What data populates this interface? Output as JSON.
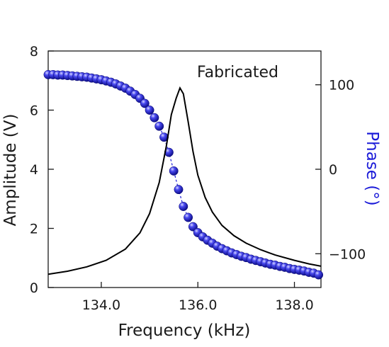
{
  "chart_data": {
    "type": "line",
    "annotation": "Fabricated",
    "xlabel": "Frequency (kHz)",
    "ylabel": "Amplitude (V)",
    "y2label": "Phase (°)",
    "xlim": [
      132.9,
      138.55
    ],
    "ylim": [
      0,
      8
    ],
    "y2lim": [
      -140,
      140
    ],
    "x_ticks": [
      134.0,
      136.0,
      138.0
    ],
    "x_tick_labels": [
      "134.0",
      "136.0",
      "138.0"
    ],
    "y_ticks": [
      0,
      2,
      4,
      6,
      8
    ],
    "y_tick_labels": [
      "0",
      "2",
      "4",
      "6",
      "8"
    ],
    "y2_ticks": [
      100,
      0,
      -100
    ],
    "y2_tick_labels": [
      "100",
      "0",
      "−100"
    ],
    "grid": false,
    "colors": {
      "amplitude": "#000000",
      "phase": "#1a1ad8",
      "axis": "#1a1a1a"
    },
    "series": [
      {
        "axis": "left",
        "style": "line",
        "x": [
          132.9,
          133.3,
          133.7,
          134.1,
          134.5,
          134.8,
          135.0,
          135.2,
          135.35,
          135.45,
          135.55,
          135.63,
          135.7,
          135.8,
          135.9,
          136.0,
          136.15,
          136.3,
          136.5,
          136.75,
          137.0,
          137.3,
          137.6,
          138.0,
          138.3,
          138.55
        ],
        "y": [
          0.45,
          0.55,
          0.7,
          0.92,
          1.3,
          1.85,
          2.5,
          3.55,
          4.8,
          5.85,
          6.4,
          6.75,
          6.55,
          5.6,
          4.6,
          3.8,
          3.05,
          2.55,
          2.1,
          1.75,
          1.5,
          1.28,
          1.1,
          0.92,
          0.8,
          0.72
        ]
      },
      {
        "axis": "right",
        "style": "markers",
        "x": [
          132.9,
          133.0,
          133.1,
          133.2,
          133.3,
          133.4,
          133.5,
          133.6,
          133.7,
          133.8,
          133.9,
          134.0,
          134.1,
          134.2,
          134.3,
          134.4,
          134.5,
          134.6,
          134.7,
          134.8,
          134.9,
          135.0,
          135.1,
          135.2,
          135.3,
          135.4,
          135.5,
          135.6,
          135.7,
          135.8,
          135.9,
          136.0,
          136.1,
          136.2,
          136.3,
          136.4,
          136.5,
          136.6,
          136.7,
          136.8,
          136.9,
          137.0,
          137.1,
          137.2,
          137.3,
          137.4,
          137.5,
          137.6,
          137.7,
          137.8,
          137.9,
          138.0,
          138.1,
          138.2,
          138.3,
          138.4,
          138.5
        ],
        "y": [
          112,
          112,
          111.5,
          111.5,
          111,
          110.5,
          110,
          109.5,
          109,
          108,
          107,
          106,
          104.5,
          103,
          101,
          98.5,
          96,
          92.5,
          88.5,
          84,
          78,
          70,
          61,
          51,
          38,
          20,
          -2,
          -24,
          -44,
          -57,
          -68,
          -75,
          -80,
          -84,
          -87.5,
          -91,
          -94,
          -96.5,
          -99,
          -101,
          -103,
          -104.5,
          -106.5,
          -108,
          -109.5,
          -111,
          -112.5,
          -113.5,
          -115,
          -116,
          -117.5,
          -118.5,
          -119.5,
          -120.5,
          -122,
          -123,
          -125
        ]
      }
    ]
  }
}
